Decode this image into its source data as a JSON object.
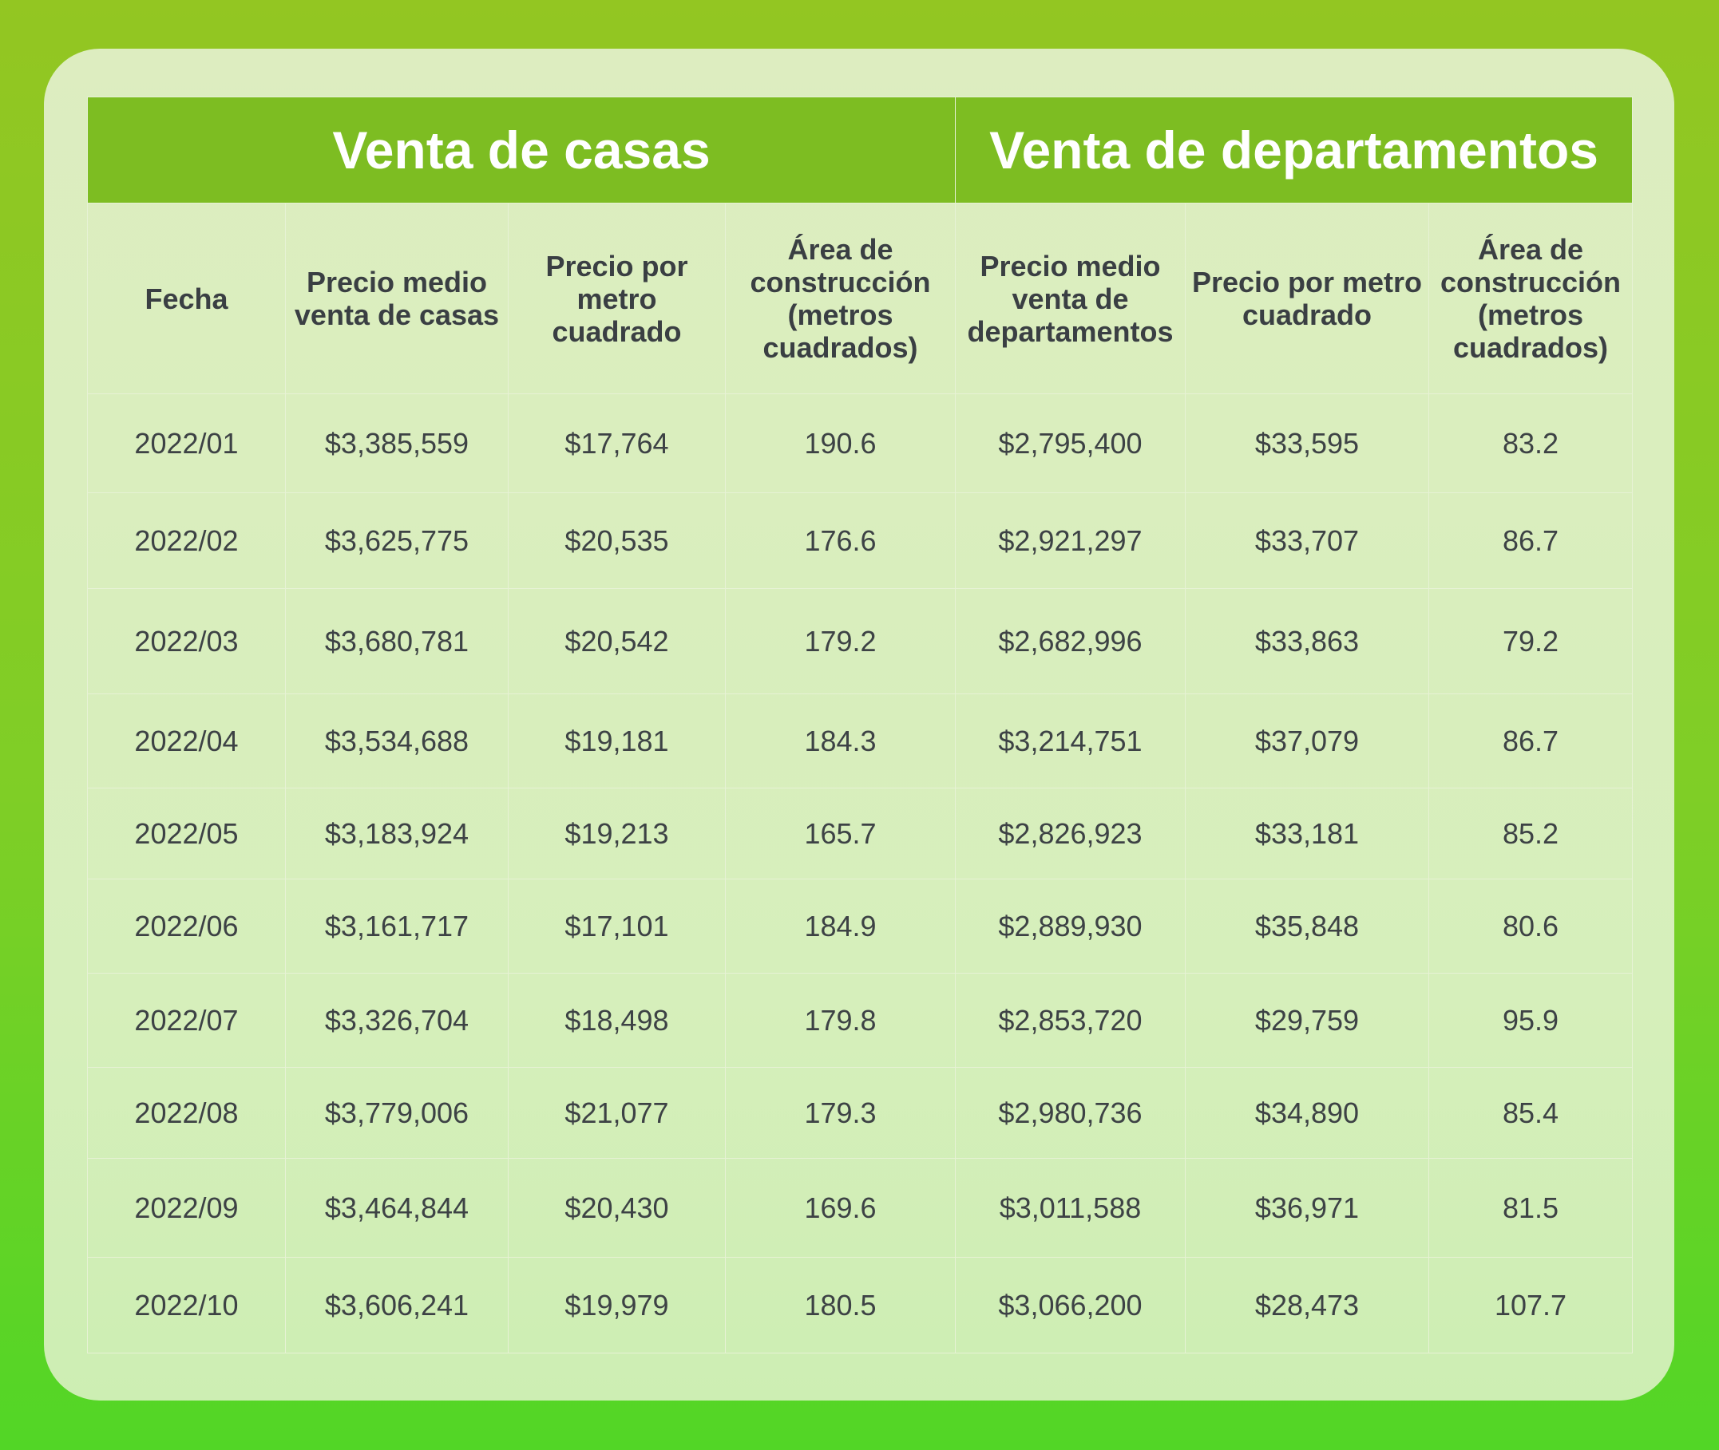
{
  "chart_data": {
    "type": "table",
    "groups": [
      {
        "label": "Venta de casas",
        "span": 4
      },
      {
        "label": "Venta de departamentos",
        "span": 3
      }
    ],
    "columns": [
      "Fecha",
      "Precio medio venta de casas",
      "Precio por metro cuadrado",
      "Área de construcción (metros cuadrados)",
      "Precio medio venta de departamentos",
      "Precio por metro cuadrado",
      "Área de construcción (metros cuadrados)"
    ],
    "rows": [
      [
        "2022/01",
        "$3,385,559",
        "$17,764",
        "190.6",
        "$2,795,400",
        "$33,595",
        "83.2"
      ],
      [
        "2022/02",
        "$3,625,775",
        "$20,535",
        "176.6",
        "$2,921,297",
        "$33,707",
        "86.7"
      ],
      [
        "2022/03",
        "$3,680,781",
        "$20,542",
        "179.2",
        "$2,682,996",
        "$33,863",
        "79.2"
      ],
      [
        "2022/04",
        "$3,534,688",
        "$19,181",
        "184.3",
        "$3,214,751",
        "$37,079",
        "86.7"
      ],
      [
        "2022/05",
        "$3,183,924",
        "$19,213",
        "165.7",
        "$2,826,923",
        "$33,181",
        "85.2"
      ],
      [
        "2022/06",
        "$3,161,717",
        "$17,101",
        "184.9",
        "$2,889,930",
        "$35,848",
        "80.6"
      ],
      [
        "2022/07",
        "$3,326,704",
        "$18,498",
        "179.8",
        "$2,853,720",
        "$29,759",
        "95.9"
      ],
      [
        "2022/08",
        "$3,779,006",
        "$21,077",
        "179.3",
        "$2,980,736",
        "$34,890",
        "85.4"
      ],
      [
        "2022/09",
        "$3,464,844",
        "$20,430",
        "169.6",
        "$3,011,588",
        "$36,971",
        "81.5"
      ],
      [
        "2022/10",
        "$3,606,241",
        "$19,979",
        "180.5",
        "$3,066,200",
        "$28,473",
        "107.7"
      ]
    ]
  }
}
